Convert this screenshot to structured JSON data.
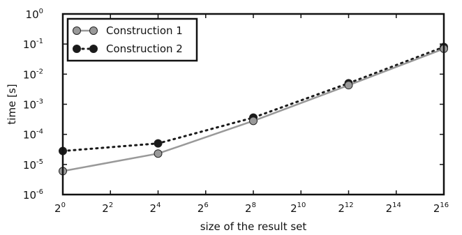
{
  "chart_data": {
    "type": "line",
    "xlabel": "size of the result set",
    "ylabel": "time [s]",
    "xscale": "log2",
    "yscale": "log10",
    "x_exponent_range": [
      0,
      16
    ],
    "y_exponent_range": [
      -6,
      0
    ],
    "x_ticks": [
      {
        "base": "2",
        "exp": "0"
      },
      {
        "base": "2",
        "exp": "2"
      },
      {
        "base": "2",
        "exp": "4"
      },
      {
        "base": "2",
        "exp": "6"
      },
      {
        "base": "2",
        "exp": "8"
      },
      {
        "base": "2",
        "exp": "10"
      },
      {
        "base": "2",
        "exp": "12"
      },
      {
        "base": "2",
        "exp": "14"
      },
      {
        "base": "2",
        "exp": "16"
      }
    ],
    "y_ticks": [
      {
        "base": "10",
        "exp": "-6"
      },
      {
        "base": "10",
        "exp": "-5"
      },
      {
        "base": "10",
        "exp": "-4"
      },
      {
        "base": "10",
        "exp": "-3"
      },
      {
        "base": "10",
        "exp": "-2"
      },
      {
        "base": "10",
        "exp": "-1"
      },
      {
        "base": "10",
        "exp": "0"
      }
    ],
    "legend_position": "top-left",
    "grid": false,
    "series": [
      {
        "name": "Construction 1",
        "line_style": "solid",
        "color": "#999999",
        "marker_fill": "#999999",
        "x": [
          1,
          16,
          256,
          4096,
          65536
        ],
        "y": [
          6e-06,
          2.3e-05,
          0.00028,
          0.0043,
          0.07
        ]
      },
      {
        "name": "Construction 2",
        "line_style": "dotted",
        "color": "#1a1a1a",
        "marker_fill": "#1a1a1a",
        "x": [
          1,
          16,
          256,
          4096,
          65536
        ],
        "y": [
          2.8e-05,
          5e-05,
          0.00036,
          0.005,
          0.08
        ]
      }
    ]
  }
}
